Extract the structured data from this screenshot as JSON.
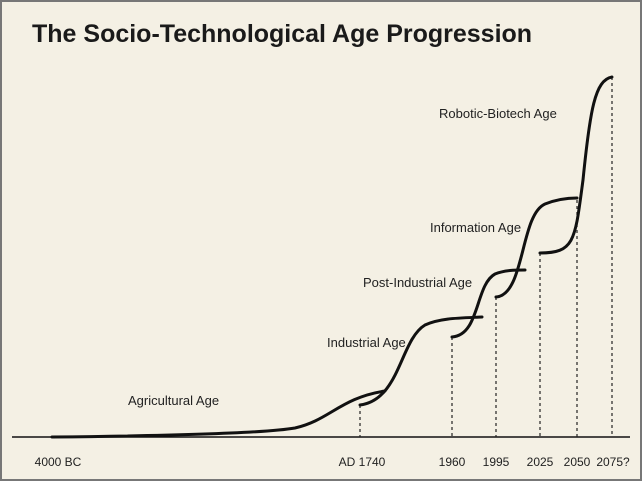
{
  "title": "The Socio-Technological Age Progression",
  "ages": [
    "Agricultural Age",
    "Industrial Age",
    "Post-Industrial Age",
    "Information Age",
    "Robotic-Biotech Age"
  ],
  "timeline": [
    "4000 BC",
    "AD 1740",
    "1960",
    "1995",
    "2025",
    "2050",
    "2075?"
  ]
}
